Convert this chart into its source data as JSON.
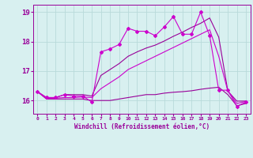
{
  "xlabel": "Windchill (Refroidissement éolien,°C)",
  "x_values": [
    0,
    1,
    2,
    3,
    4,
    5,
    6,
    7,
    8,
    9,
    10,
    11,
    12,
    13,
    14,
    15,
    16,
    17,
    18,
    19,
    20,
    21,
    22,
    23
  ],
  "series_actual": [
    16.3,
    16.1,
    16.1,
    16.2,
    16.15,
    16.15,
    15.95,
    17.65,
    17.75,
    17.9,
    18.45,
    18.35,
    18.35,
    18.2,
    18.5,
    18.85,
    18.25,
    18.25,
    19.0,
    18.2,
    16.35,
    16.35,
    15.8,
    15.95
  ],
  "series_min": [
    16.3,
    16.05,
    16.05,
    16.05,
    16.05,
    16.05,
    16.0,
    16.0,
    16.0,
    16.05,
    16.1,
    16.15,
    16.2,
    16.2,
    16.25,
    16.28,
    16.3,
    16.33,
    16.38,
    16.42,
    16.45,
    16.2,
    15.82,
    15.9
  ],
  "series_max": [
    16.3,
    16.1,
    16.1,
    16.2,
    16.2,
    16.2,
    16.15,
    16.85,
    17.05,
    17.25,
    17.5,
    17.65,
    17.78,
    17.88,
    18.02,
    18.18,
    18.32,
    18.48,
    18.62,
    18.8,
    18.15,
    16.32,
    15.98,
    15.98
  ],
  "series_mean": [
    16.3,
    16.07,
    16.08,
    16.1,
    16.1,
    16.12,
    16.1,
    16.4,
    16.6,
    16.8,
    17.05,
    17.2,
    17.35,
    17.5,
    17.65,
    17.8,
    17.95,
    18.1,
    18.25,
    18.4,
    17.5,
    16.32,
    15.9,
    15.97
  ],
  "color_actual": "#cc00cc",
  "color_min": "#990099",
  "color_max": "#990099",
  "color_mean": "#cc00cc",
  "background_color": "#d8f0f0",
  "grid_color": "#b8dada",
  "text_color": "#990099",
  "ylim": [
    15.55,
    19.25
  ],
  "yticks": [
    16,
    17,
    18,
    19
  ],
  "xlim": [
    -0.5,
    23.5
  ]
}
